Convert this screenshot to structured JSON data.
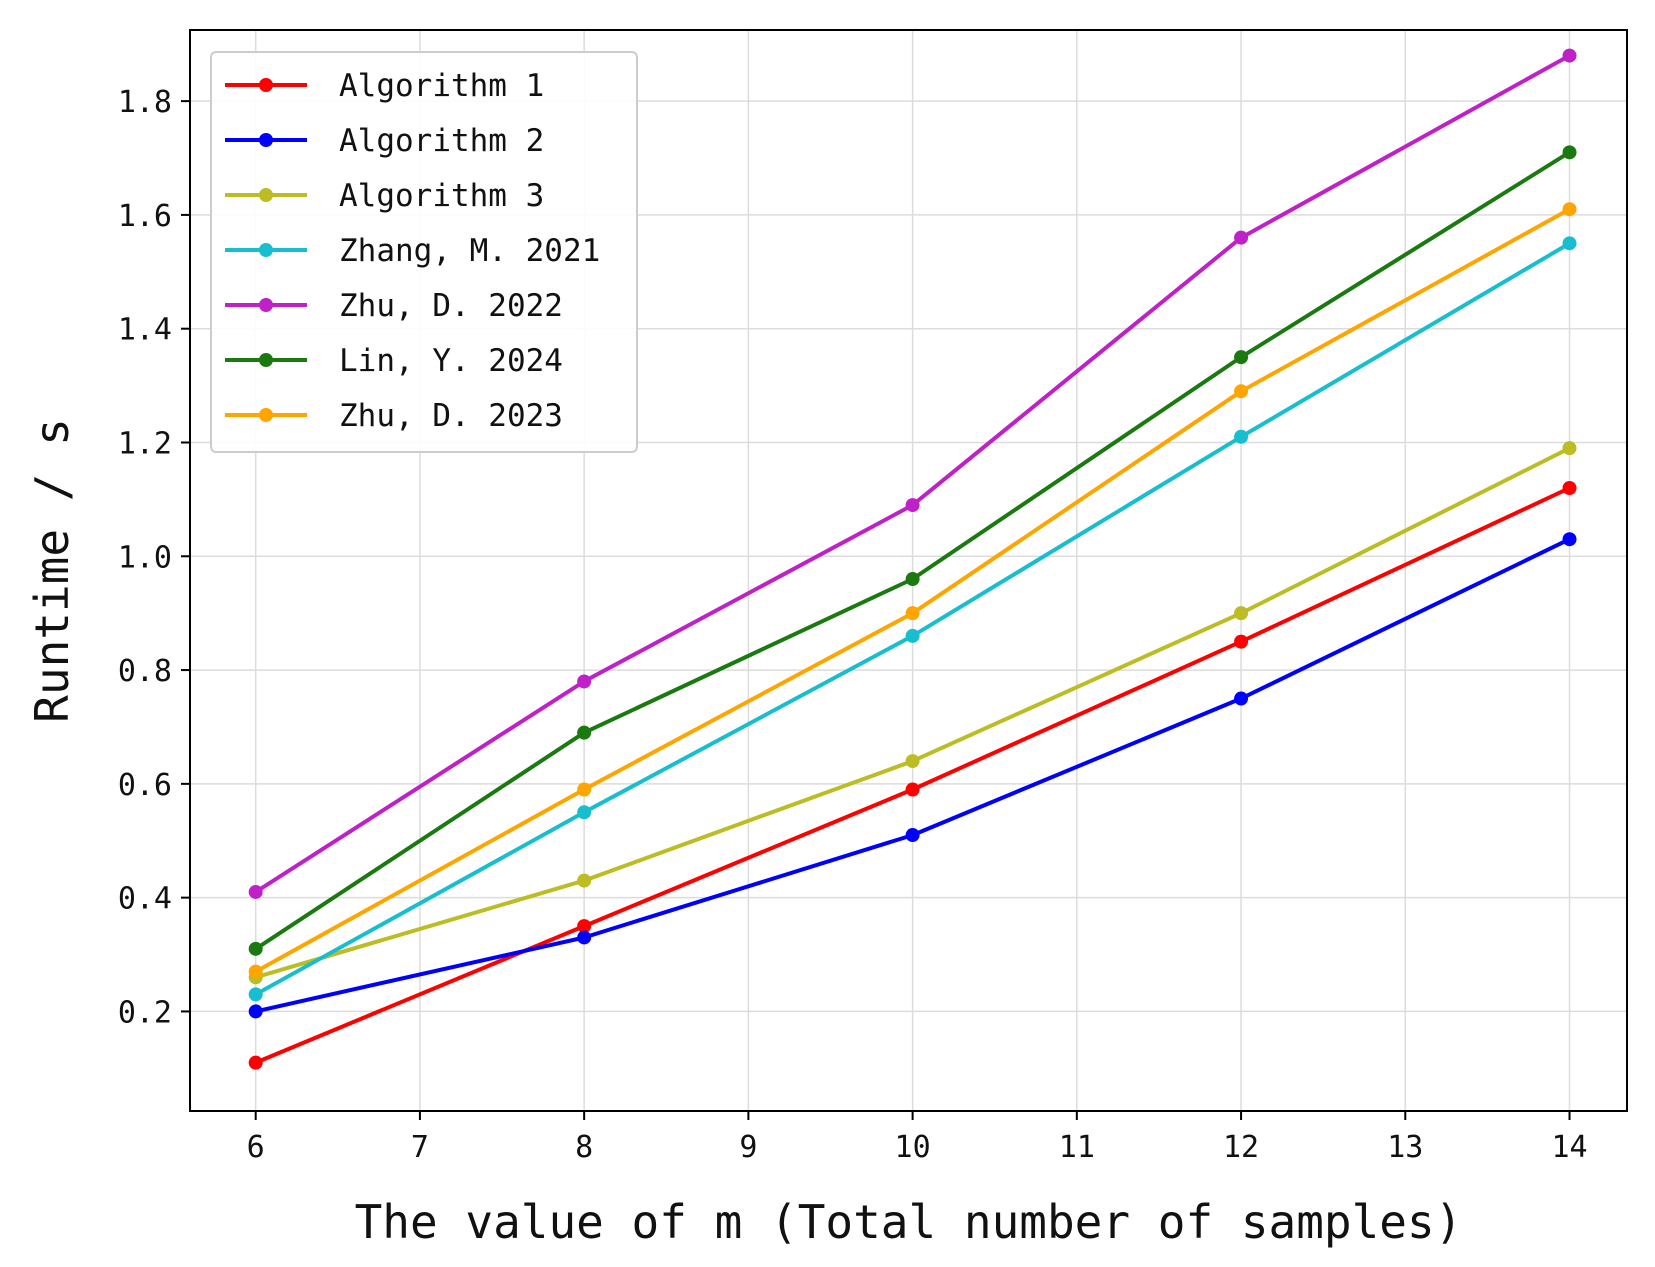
{
  "chart_data": {
    "type": "line",
    "title": "",
    "xlabel": "The value of m (Total number of samples)",
    "ylabel": "Runtime / s",
    "x": [
      6,
      8,
      10,
      12,
      14
    ],
    "xlim": [
      5.6,
      14.35
    ],
    "ylim": [
      0.025,
      1.925
    ],
    "xticks": [
      6,
      7,
      8,
      9,
      10,
      11,
      12,
      13,
      14
    ],
    "yticks": [
      0.2,
      0.4,
      0.6,
      0.8,
      1.0,
      1.2,
      1.4,
      1.6,
      1.8
    ],
    "ytick_labels": [
      "0.2",
      "0.4",
      "0.6",
      "0.8",
      "1.0",
      "1.2",
      "1.4",
      "1.6",
      "1.8"
    ],
    "grid": true,
    "legend_position": "top-left",
    "series": [
      {
        "name": "Algorithm 1",
        "color": "#ff0000",
        "values": [
          0.11,
          0.35,
          0.59,
          0.85,
          1.12
        ]
      },
      {
        "name": "Algorithm 2",
        "color": "#0000ff",
        "values": [
          0.2,
          0.33,
          0.51,
          0.75,
          1.03
        ]
      },
      {
        "name": "Algorithm 3",
        "color": "#bcbd22",
        "values": [
          0.26,
          0.43,
          0.64,
          0.9,
          1.19
        ]
      },
      {
        "name": "Zhang, M. 2021",
        "color": "#17becf",
        "values": [
          0.23,
          0.55,
          0.86,
          1.21,
          1.55
        ]
      },
      {
        "name": "Zhu, D. 2022",
        "color": "#c020c8",
        "values": [
          0.41,
          0.78,
          1.09,
          1.56,
          1.88
        ]
      },
      {
        "name": "Lin, Y. 2024",
        "color": "#1a7a10",
        "values": [
          0.31,
          0.69,
          0.96,
          1.35,
          1.71
        ]
      },
      {
        "name": "Zhu, D. 2023",
        "color": "#ffa500",
        "values": [
          0.27,
          0.59,
          0.9,
          1.29,
          1.61
        ]
      }
    ]
  }
}
